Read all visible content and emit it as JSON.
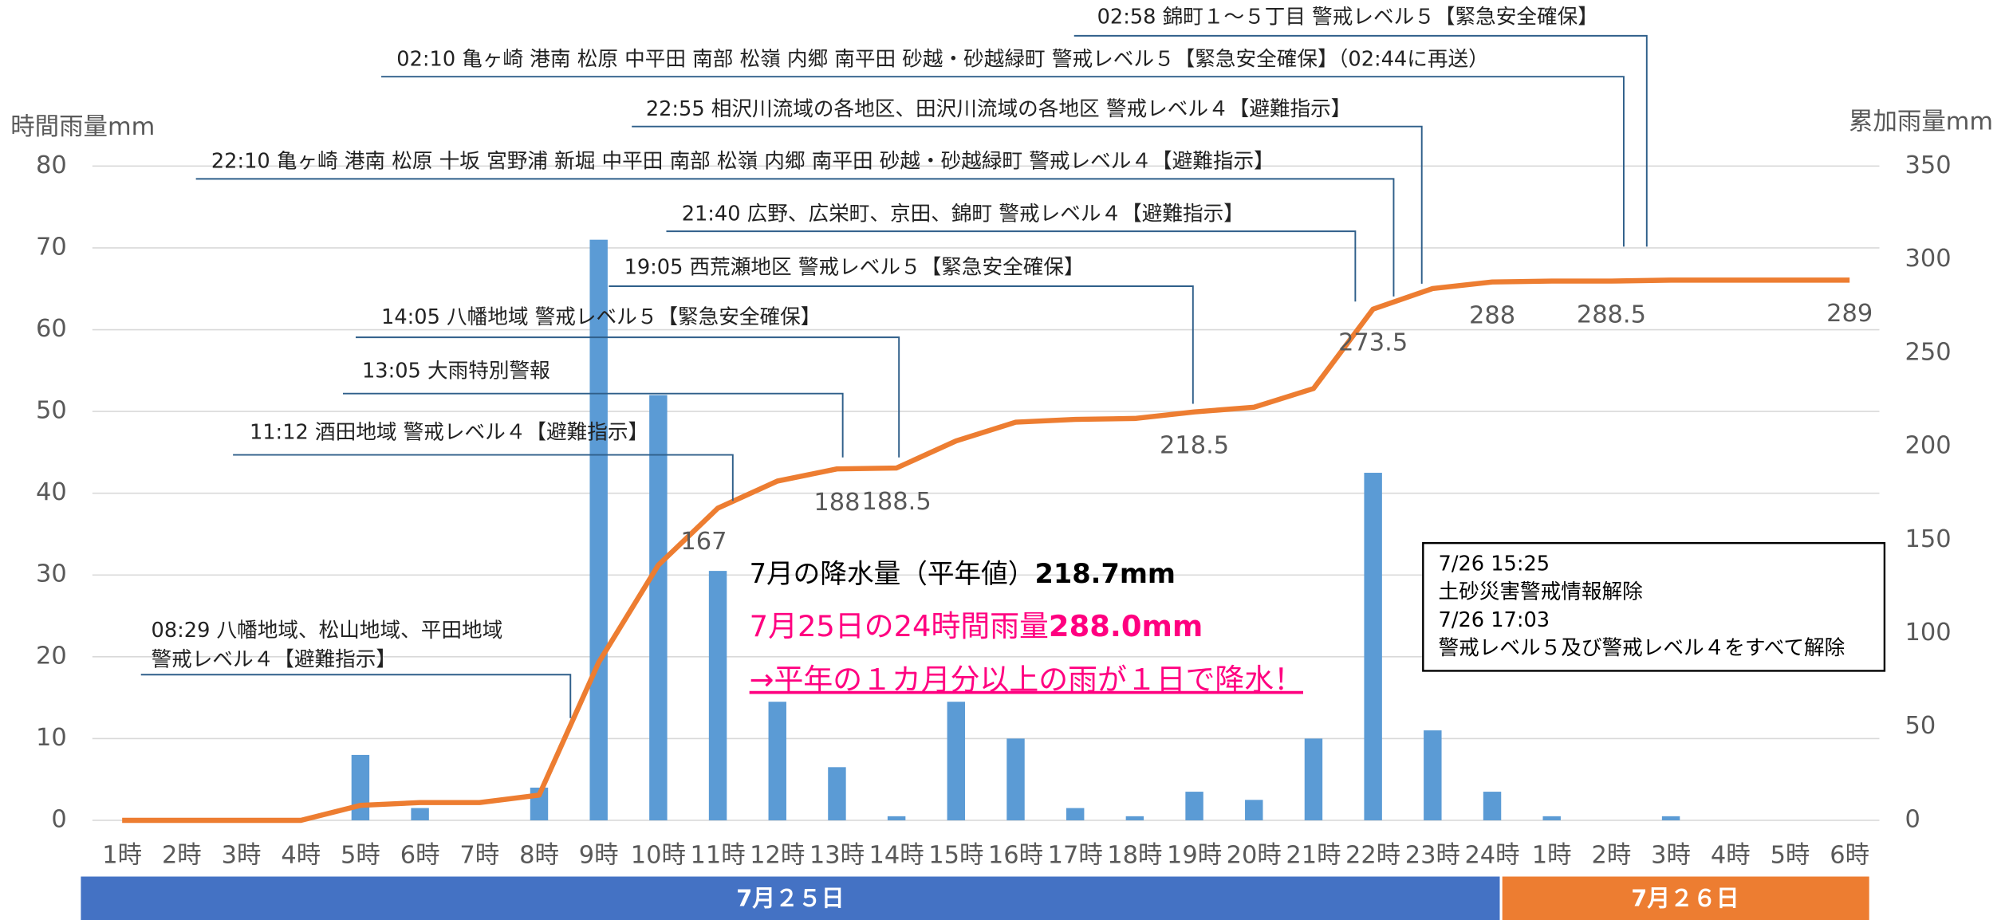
{
  "chart_data": {
    "type": "bar-line",
    "y_label": "時間雨量mm",
    "y2_label": "累加雨量mm",
    "categories": [
      "1時",
      "2時",
      "3時",
      "4時",
      "5時",
      "6時",
      "7時",
      "8時",
      "9時",
      "10時",
      "11時",
      "12時",
      "13時",
      "14時",
      "15時",
      "16時",
      "17時",
      "18時",
      "19時",
      "20時",
      "21時",
      "22時",
      "23時",
      "24時",
      "1時",
      "2時",
      "3時",
      "4時",
      "5時",
      "6時"
    ],
    "ylim": [
      0,
      80
    ],
    "yticks": [
      0,
      10,
      20,
      30,
      40,
      50,
      60,
      70,
      80
    ],
    "y2lim": [
      0,
      350
    ],
    "y2ticks": [
      0,
      50,
      100,
      150,
      200,
      250,
      300,
      350
    ],
    "grid": true,
    "series": [
      {
        "type": "bar",
        "color": "#5b9bd5",
        "values": [
          0,
          0,
          0,
          0,
          8,
          1.5,
          0,
          4,
          71,
          52,
          30.5,
          14.5,
          6.5,
          0.5,
          14.5,
          10,
          1.5,
          0.5,
          3.5,
          2.5,
          10,
          42.5,
          11,
          3.5,
          0.5,
          0,
          0.5,
          0,
          0,
          0
        ]
      },
      {
        "type": "line",
        "axis": "y2",
        "color": "#ed7d31",
        "values": [
          0,
          0,
          0,
          0,
          8,
          9.5,
          9.5,
          13.5,
          84.5,
          136.5,
          167,
          181.5,
          188,
          188.5,
          203,
          213,
          214.5,
          215,
          218.5,
          221,
          231,
          273.5,
          284.5,
          288,
          288.5,
          288.5,
          289,
          289,
          289,
          289
        ],
        "value_labels": [
          null,
          null,
          null,
          null,
          null,
          null,
          null,
          null,
          null,
          null,
          "167",
          null,
          "188",
          "188.5",
          null,
          null,
          null,
          null,
          "218.5",
          null,
          null,
          "273.5",
          null,
          "288",
          null,
          "288.5",
          null,
          null,
          null,
          "289"
        ]
      }
    ],
    "annotations": [
      {
        "lines": [
          "02:58 錦町１～５丁目 警戒レベル５【緊急安全確保】"
        ]
      },
      {
        "lines": [
          "02:10 亀ヶ崎 港南 松原 中平田 南部 松嶺 内郷 南平田 砂越・砂越緑町 警戒レベル５【緊急安全確保】（02:44に再送）"
        ]
      },
      {
        "lines": [
          "22:55 相沢川流域の各地区、田沢川流域の各地区 警戒レベル４【避難指示】"
        ]
      },
      {
        "lines": [
          "22:10 亀ヶ崎 港南 松原 十坂 宮野浦 新堀 中平田 南部 松嶺 内郷 南平田 砂越・砂越緑町 警戒レベル４【避難指示】"
        ]
      },
      {
        "lines": [
          "21:40 広野、広栄町、京田、錦町 警戒レベル４【避難指示】"
        ]
      },
      {
        "lines": [
          "19:05 西荒瀬地区 警戒レベル５【緊急安全確保】"
        ]
      },
      {
        "lines": [
          "14:05 八幡地域 警戒レベル５【緊急安全確保】"
        ]
      },
      {
        "lines": [
          "13:05 大雨特別警報"
        ]
      },
      {
        "lines": [
          "11:12 酒田地域 警戒レベル４【避難指示】"
        ]
      },
      {
        "lines": [
          "08:29 八幡地域、松山地域、平田地域",
          "警戒レベル４【避難指示】"
        ]
      }
    ],
    "summary": {
      "normal_label": "7月の降水量（平年値）",
      "normal_value": "218.7mm",
      "daily_label": "7月25日の24時間雨量",
      "daily_value": "288.0mm",
      "note": "→平年の１カ月分以上の雨が１日で降水！"
    },
    "release_box": [
      "7/26 15:25",
      "土砂災害警戒情報解除",
      "7/26 17:03",
      "警戒レベル５及び警戒レベル４をすべて解除"
    ],
    "date_bands": [
      "7月２５日",
      "7月２６日"
    ]
  }
}
